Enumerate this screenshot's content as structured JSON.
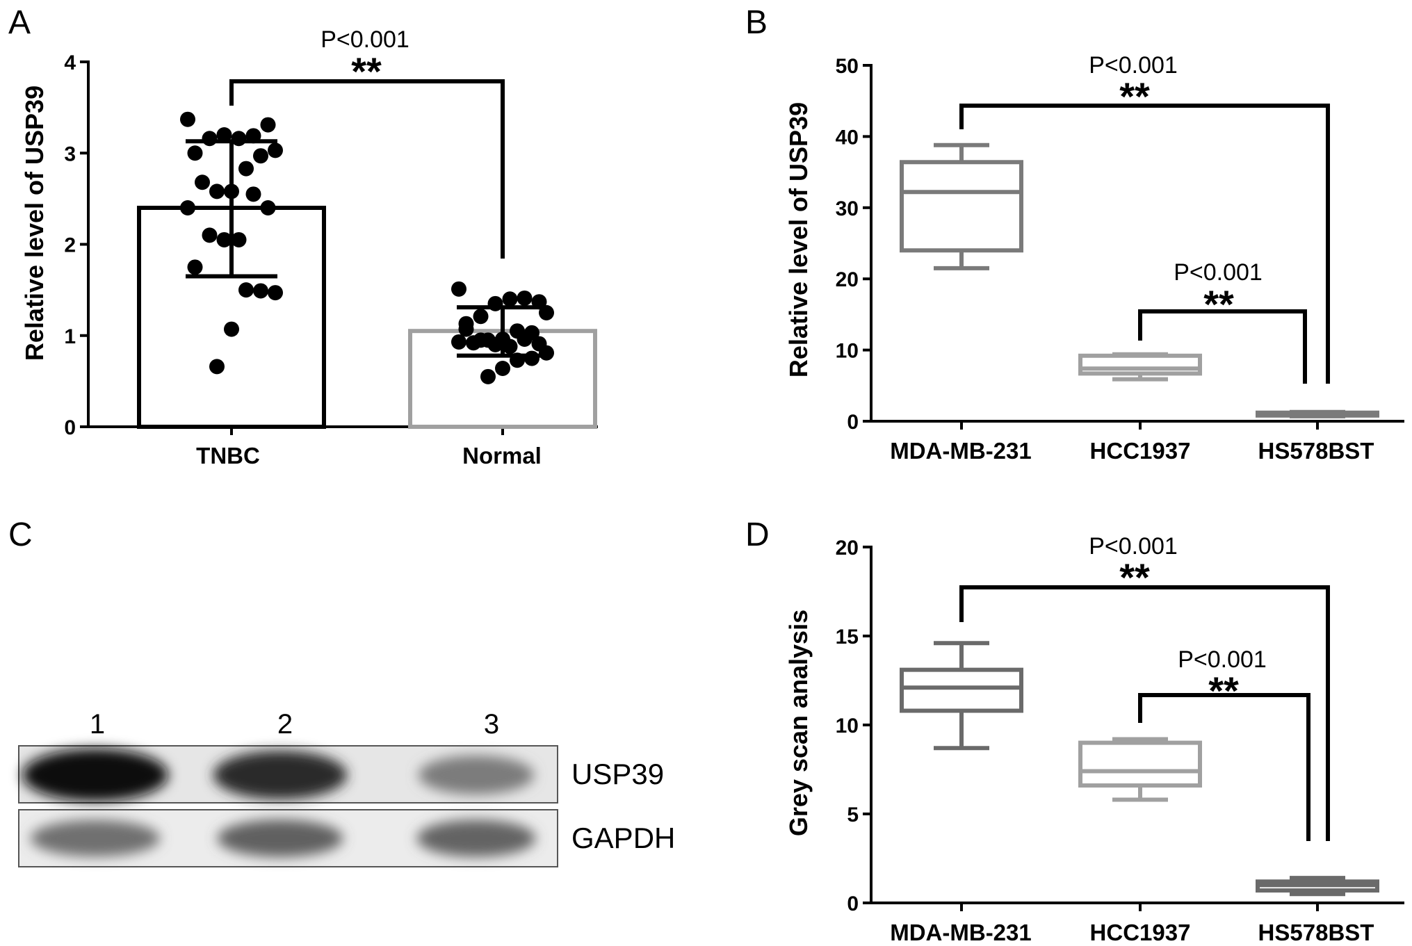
{
  "panels": {
    "A": {
      "letter": "A"
    },
    "B": {
      "letter": "B"
    },
    "C": {
      "letter": "C"
    },
    "D": {
      "letter": "D"
    }
  },
  "colors": {
    "black": "#000000",
    "light_gray": "#a0a0a0",
    "mid_gray": "#7a7a7a",
    "dark_gray": "#6a6a6a"
  },
  "chart_data": [
    {
      "panel": "A",
      "type": "bar",
      "categories": [
        "TNBC",
        "Normal"
      ],
      "values": [
        2.4,
        1.05
      ],
      "error_sd": [
        [
          1.65,
          3.13
        ],
        [
          0.78,
          1.31
        ]
      ],
      "points": {
        "TNBC": [
          3.37,
          3.31,
          3.19,
          3.16,
          3.2,
          3.16,
          3.0,
          3.03,
          2.97,
          2.83,
          2.58,
          2.58,
          2.68,
          2.4,
          2.4,
          2.55,
          2.05,
          2.05,
          2.1,
          1.75,
          1.47,
          1.49,
          1.5,
          1.07,
          0.66
        ],
        "Normal": [
          1.51,
          1.37,
          1.41,
          1.4,
          1.35,
          1.21,
          1.13,
          1.25,
          1.03,
          1.05,
          0.96,
          0.95,
          0.92,
          0.93,
          0.91,
          0.96,
          0.88,
          0.9,
          0.95,
          1.07,
          0.81,
          0.75,
          0.73,
          0.64,
          0.55
        ]
      },
      "ylim": [
        0,
        4
      ],
      "yticks": [
        0,
        1,
        2,
        3,
        4
      ],
      "ylabel": "Relative level of USP39",
      "annotations": [
        {
          "from": "TNBC",
          "to": "Normal",
          "p": "P<0.001",
          "stars": "**"
        }
      ]
    },
    {
      "panel": "B",
      "type": "box",
      "categories": [
        "MDA-MB-231",
        "HCC1937",
        "HS578BST"
      ],
      "boxes": [
        {
          "min": 21.5,
          "q1": 24,
          "median": 32.2,
          "q3": 36.4,
          "max": 38.8
        },
        {
          "min": 5.9,
          "q1": 6.7,
          "median": 7.4,
          "q3": 9.2,
          "max": 9.4
        },
        {
          "min": 0.7,
          "q1": 0.8,
          "median": 1.0,
          "q3": 1.2,
          "max": 1.3
        }
      ],
      "ylim": [
        0,
        50
      ],
      "yticks": [
        0,
        10,
        20,
        30,
        40,
        50
      ],
      "ylabel": "Relative level of USP39",
      "annotations": [
        {
          "from": "MDA-MB-231",
          "to": "HS578BST",
          "p": "P<0.001",
          "stars": "**"
        },
        {
          "from": "HCC1937",
          "to": "HS578BST",
          "p": "P<0.001",
          "stars": "**"
        }
      ]
    },
    {
      "panel": "D",
      "type": "box",
      "categories": [
        "MDA-MB-231",
        "HCC1937",
        "HS578BST"
      ],
      "boxes": [
        {
          "min": 8.7,
          "q1": 10.8,
          "median": 12.1,
          "q3": 13.1,
          "max": 14.6
        },
        {
          "min": 5.8,
          "q1": 6.6,
          "median": 7.4,
          "q3": 9.0,
          "max": 9.2
        },
        {
          "min": 0.5,
          "q1": 0.7,
          "median": 1.0,
          "q3": 1.2,
          "max": 1.4
        }
      ],
      "ylim": [
        0,
        20
      ],
      "yticks": [
        0,
        5,
        10,
        15,
        20
      ],
      "ylabel": "Grey scan analysis",
      "annotations": [
        {
          "from": "MDA-MB-231",
          "to": "HS578BST",
          "p": "P<0.001",
          "stars": "**"
        },
        {
          "from": "HCC1937",
          "to": "HS578BST",
          "p": "P<0.001",
          "stars": "**"
        }
      ]
    }
  ],
  "blot": {
    "lanes": [
      "1",
      "2",
      "3"
    ],
    "rows": [
      {
        "label": "USP39",
        "intensity": [
          1.0,
          0.85,
          0.5
        ]
      },
      {
        "label": "GAPDH",
        "intensity": [
          0.55,
          0.62,
          0.6
        ]
      }
    ]
  }
}
